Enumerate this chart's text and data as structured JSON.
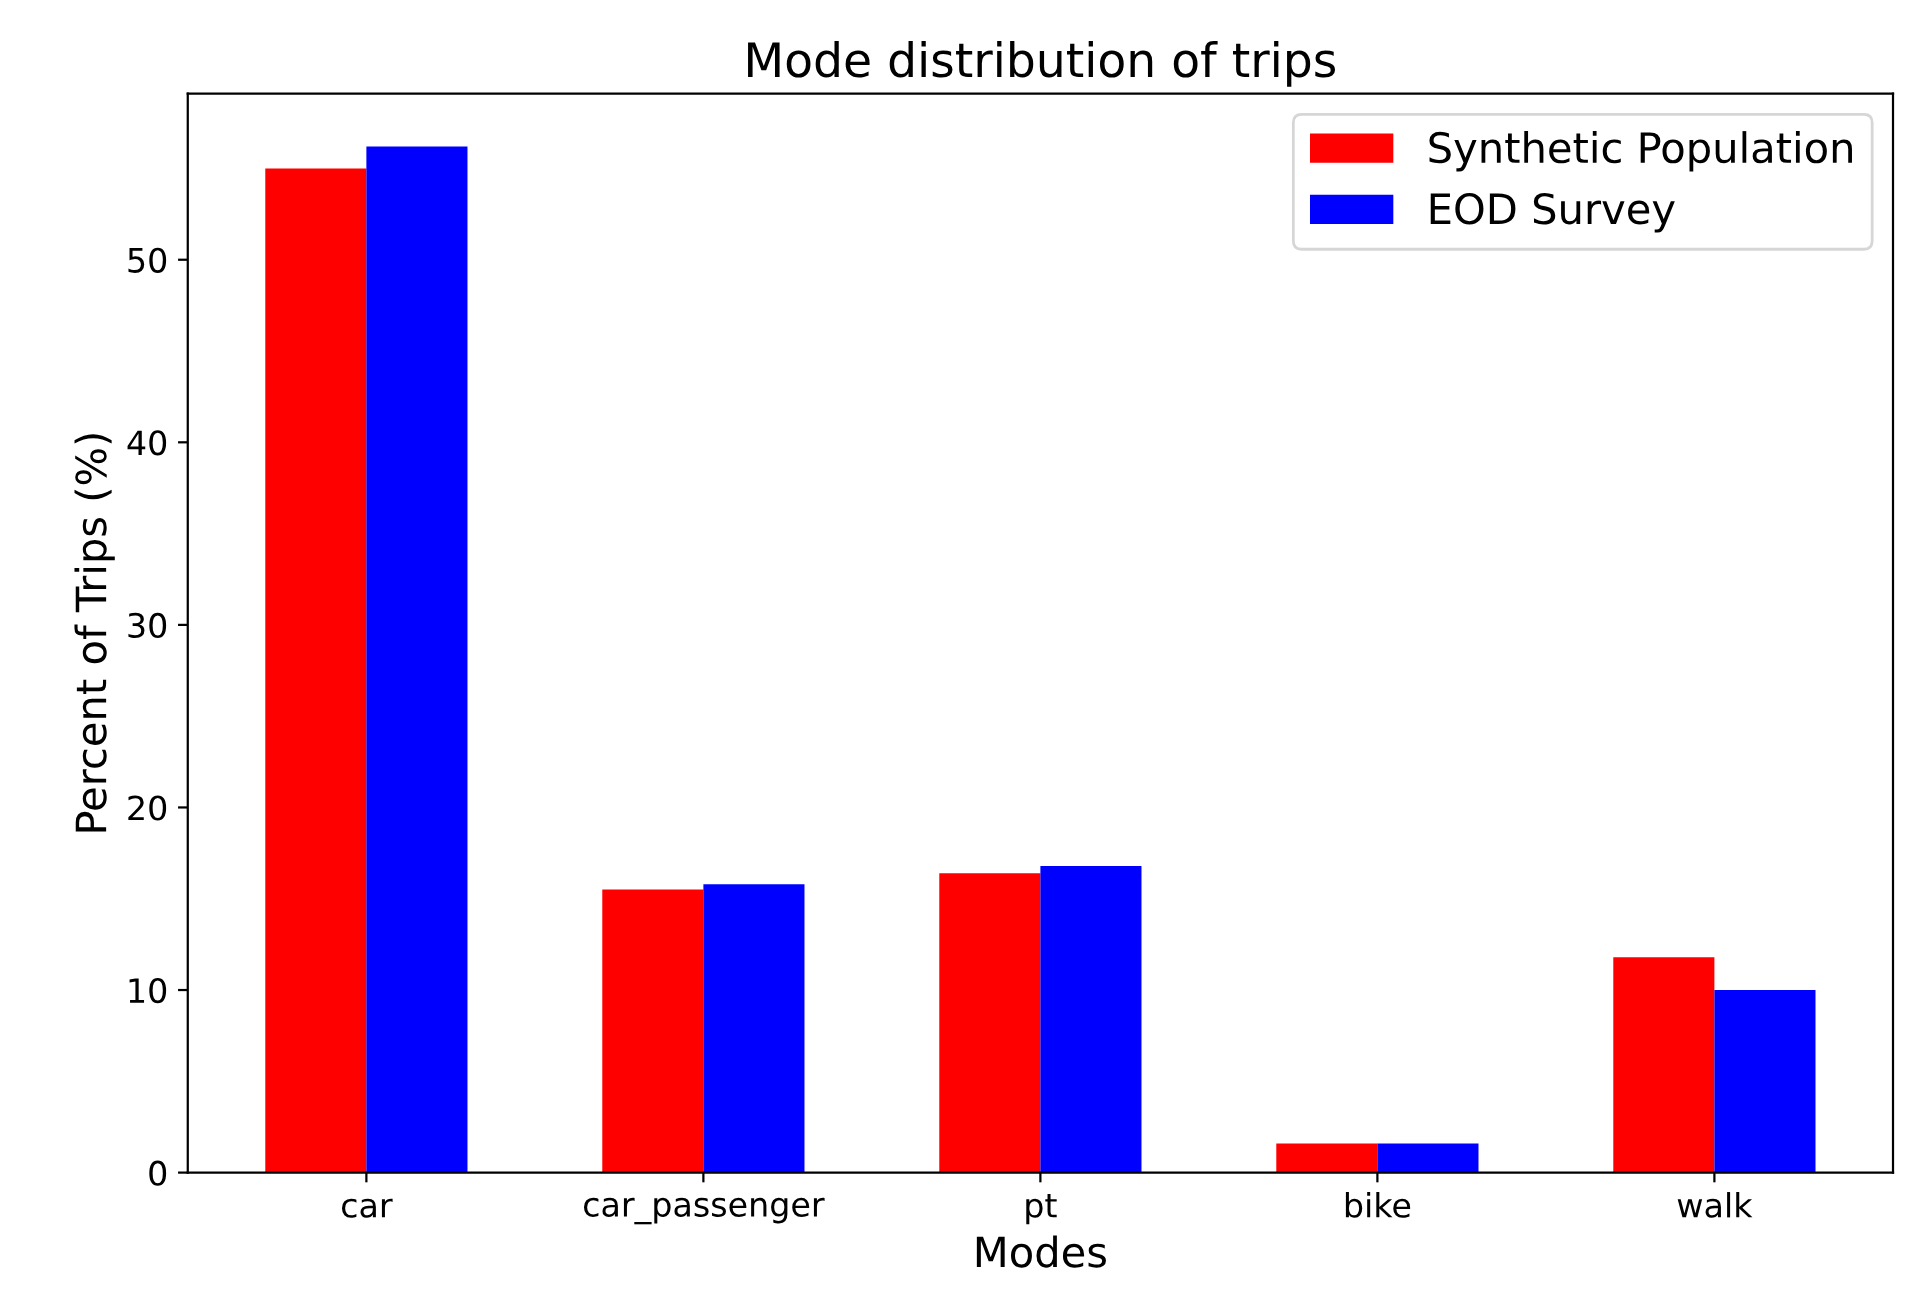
{
  "chart_data": {
    "type": "bar",
    "title": "Mode distribution of trips",
    "xlabel": "Modes",
    "ylabel": "Percent of Trips (%)",
    "categories": [
      "car",
      "car_passenger",
      "pt",
      "bike",
      "walk"
    ],
    "series": [
      {
        "name": "Synthetic Population",
        "color": "#ff0000",
        "values": [
          55.0,
          15.5,
          16.4,
          1.6,
          11.8
        ]
      },
      {
        "name": "EOD Survey",
        "color": "#0000ff",
        "values": [
          56.2,
          15.8,
          16.8,
          1.6,
          10.0
        ]
      }
    ],
    "ylim": [
      0,
      59.1
    ],
    "yticks": [
      0,
      10,
      20,
      30,
      40,
      50
    ],
    "legend": "top right",
    "grid": false
  }
}
